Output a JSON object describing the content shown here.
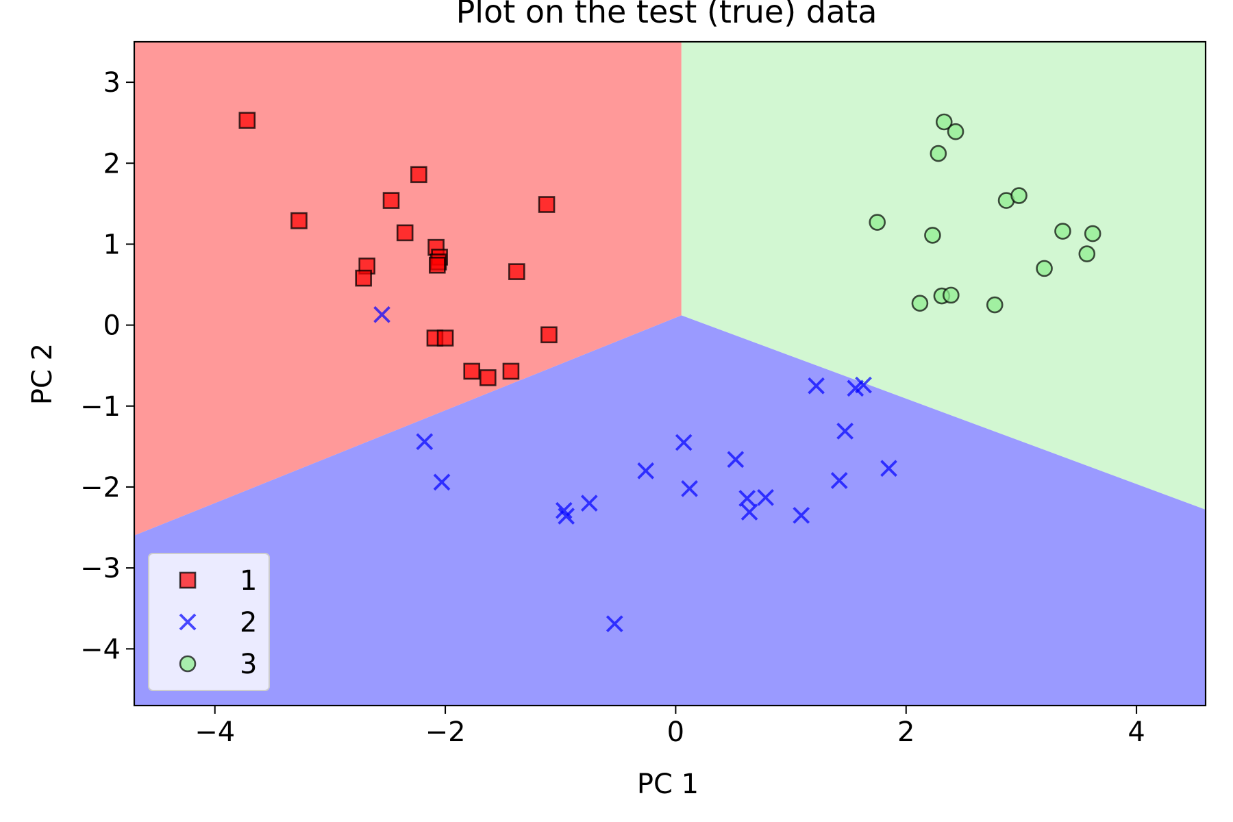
{
  "chart_data": {
    "type": "scatter",
    "title": "Plot on the test (true) data",
    "xlabel": "PC 1",
    "ylabel": "PC 2",
    "xlim": [
      -4.7,
      4.6
    ],
    "ylim": [
      -4.7,
      3.5
    ],
    "xticks": [
      -4,
      -2,
      0,
      2,
      4
    ],
    "yticks": [
      -4,
      -3,
      -2,
      -1,
      0,
      1,
      2,
      3
    ],
    "xtick_labels": [
      "−4",
      "−2",
      "0",
      "2",
      "4"
    ],
    "ytick_labels": [
      "−4",
      "−3",
      "−2",
      "−1",
      "0",
      "1",
      "2",
      "3"
    ],
    "grid": false,
    "legend_position": "lower-left",
    "decision_regions": [
      {
        "class": "1",
        "color": "#ff9999",
        "vertices": [
          [
            -4.7,
            3.5
          ],
          [
            0.05,
            3.5
          ],
          [
            0.05,
            0.12
          ],
          [
            -4.7,
            -2.6
          ]
        ]
      },
      {
        "class": "3",
        "color": "#d2f7d2",
        "vertices": [
          [
            0.05,
            3.5
          ],
          [
            4.6,
            3.5
          ],
          [
            4.6,
            -2.28
          ],
          [
            0.05,
            0.12
          ]
        ]
      },
      {
        "class": "2",
        "color": "#9a9aff",
        "vertices": [
          [
            -4.7,
            -2.6
          ],
          [
            0.05,
            0.12
          ],
          [
            4.6,
            -2.28
          ],
          [
            4.6,
            -4.7
          ],
          [
            -4.7,
            -4.7
          ]
        ]
      }
    ],
    "series": [
      {
        "name": "1",
        "marker": "square",
        "color": "#ff0000",
        "points": [
          [
            -3.72,
            2.53
          ],
          [
            -3.27,
            1.29
          ],
          [
            -2.23,
            1.86
          ],
          [
            -2.47,
            1.54
          ],
          [
            -2.35,
            1.14
          ],
          [
            -1.12,
            1.49
          ],
          [
            -2.08,
            0.96
          ],
          [
            -2.05,
            0.84
          ],
          [
            -2.06,
            0.78
          ],
          [
            -2.07,
            0.74
          ],
          [
            -2.68,
            0.73
          ],
          [
            -2.71,
            0.58
          ],
          [
            -1.38,
            0.66
          ],
          [
            -2.09,
            -0.16
          ],
          [
            -2.0,
            -0.16
          ],
          [
            -1.1,
            -0.12
          ],
          [
            -1.77,
            -0.57
          ],
          [
            -1.43,
            -0.57
          ],
          [
            -1.63,
            -0.65
          ]
        ]
      },
      {
        "name": "2",
        "marker": "x",
        "color": "#0000ff",
        "points": [
          [
            -2.55,
            0.13
          ],
          [
            -2.18,
            -1.44
          ],
          [
            -2.03,
            -1.94
          ],
          [
            -0.97,
            -2.29
          ],
          [
            -0.95,
            -2.36
          ],
          [
            -0.75,
            -2.2
          ],
          [
            -0.26,
            -1.8
          ],
          [
            0.07,
            -1.45
          ],
          [
            0.12,
            -2.02
          ],
          [
            0.52,
            -1.66
          ],
          [
            0.62,
            -2.14
          ],
          [
            0.64,
            -2.31
          ],
          [
            0.78,
            -2.13
          ],
          [
            1.09,
            -2.35
          ],
          [
            1.22,
            -0.75
          ],
          [
            1.42,
            -1.92
          ],
          [
            1.47,
            -1.31
          ],
          [
            1.56,
            -0.78
          ],
          [
            1.63,
            -0.74
          ],
          [
            1.85,
            -1.77
          ],
          [
            -0.53,
            -3.69
          ]
        ]
      },
      {
        "name": "3",
        "marker": "circle",
        "color": "#90ee90",
        "points": [
          [
            2.33,
            2.51
          ],
          [
            2.43,
            2.39
          ],
          [
            2.28,
            2.12
          ],
          [
            2.87,
            1.54
          ],
          [
            2.98,
            1.6
          ],
          [
            1.75,
            1.27
          ],
          [
            2.23,
            1.11
          ],
          [
            3.36,
            1.16
          ],
          [
            3.62,
            1.13
          ],
          [
            3.57,
            0.88
          ],
          [
            3.2,
            0.7
          ],
          [
            2.12,
            0.27
          ],
          [
            2.31,
            0.36
          ],
          [
            2.39,
            0.37
          ],
          [
            2.77,
            0.25
          ]
        ]
      }
    ]
  }
}
